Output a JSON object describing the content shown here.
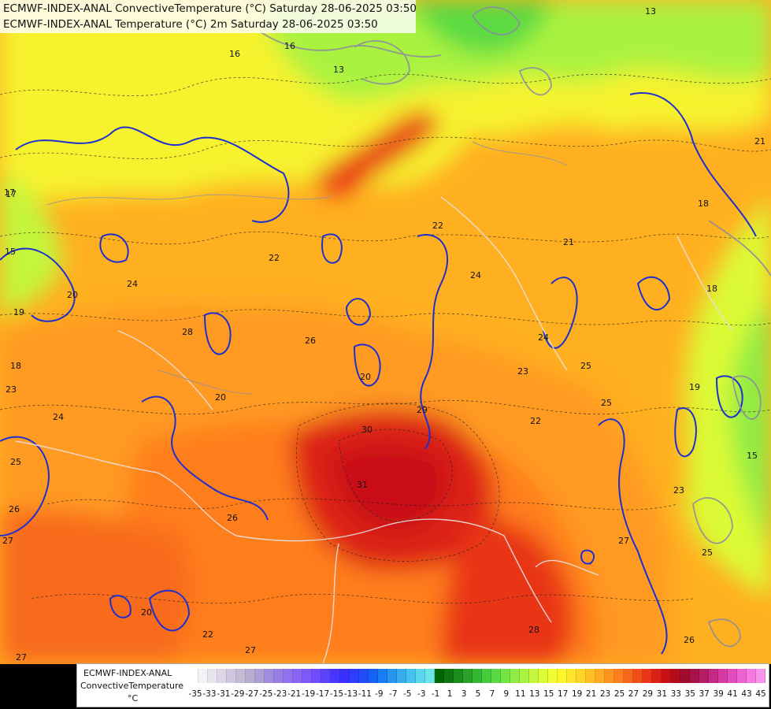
{
  "titles": {
    "line1": "ECMWF-INDEX-ANAL ConvectiveTemperature (°C) Saturday 28-06-2025 03:50",
    "line2": "ECMWF-INDEX-ANAL Temperature (°C) 2m Saturday 28-06-2025 03:50"
  },
  "legend": {
    "source": "ECMWF-INDEX-ANAL",
    "variable": "ConvectiveTemperature",
    "unit": "°C",
    "colors": [
      "#ffffff",
      "#f4f2f6",
      "#e8e4ee",
      "#dcd6e6",
      "#d0c8de",
      "#c4bcd4",
      "#b8aed0",
      "#ac9fd4",
      "#a08edd",
      "#9a7ee8",
      "#9270f0",
      "#8a64f6",
      "#7e58fb",
      "#6e4dff",
      "#5b42ff",
      "#4636ff",
      "#3a2fff",
      "#2e3dff",
      "#1f4dfa",
      "#1463f5",
      "#1a7cf2",
      "#2794f0",
      "#36abef",
      "#46c2ee",
      "#58d6ec",
      "#6ae6e8",
      "#006400",
      "#107710",
      "#1c8c1c",
      "#28a228",
      "#34b834",
      "#44cc3c",
      "#5ada42",
      "#74e444",
      "#8fec44",
      "#aaf240",
      "#c4f63c",
      "#dcfa36",
      "#f0fc30",
      "#fdf52c",
      "#ffe62a",
      "#ffd428",
      "#ffc024",
      "#ffaa22",
      "#ff9420",
      "#ff7e1e",
      "#fa661c",
      "#f24e1a",
      "#e83618",
      "#dc2016",
      "#c81014",
      "#b40c1c",
      "#a00c30",
      "#a8124a",
      "#b41c66",
      "#c42a84",
      "#d43aa2",
      "#e04cbc",
      "#ec62d2",
      "#f47ae2",
      "#f894ec"
    ],
    "ticks": [
      "-35",
      "-33",
      "-31",
      "-29",
      "-27",
      "-25",
      "-23",
      "-21",
      "-19",
      "-17",
      "-15",
      "-13",
      "-11",
      "-9",
      "-7",
      "-5",
      "-3",
      "-1",
      "1",
      "3",
      "5",
      "7",
      "9",
      "11",
      "13",
      "15",
      "17",
      "19",
      "21",
      "23",
      "25",
      "27",
      "29",
      "31",
      "33",
      "35",
      "37",
      "39",
      "41",
      "43",
      "45"
    ]
  },
  "map": {
    "contour_labels": [
      {
        "text": "13"
      },
      {
        "text": "16"
      },
      {
        "text": "13"
      },
      {
        "text": "16"
      },
      {
        "text": "17"
      },
      {
        "text": "15"
      },
      {
        "text": "20"
      },
      {
        "text": "22"
      },
      {
        "text": "24"
      },
      {
        "text": "22"
      },
      {
        "text": "19"
      },
      {
        "text": "18"
      },
      {
        "text": "23"
      },
      {
        "text": "28"
      },
      {
        "text": "26"
      },
      {
        "text": "20"
      },
      {
        "text": "24"
      },
      {
        "text": "20"
      },
      {
        "text": "25"
      },
      {
        "text": "26"
      },
      {
        "text": "27"
      },
      {
        "text": "30"
      },
      {
        "text": "29"
      },
      {
        "text": "31"
      },
      {
        "text": "24"
      },
      {
        "text": "21"
      },
      {
        "text": "24"
      },
      {
        "text": "23"
      },
      {
        "text": "25"
      },
      {
        "text": "22"
      },
      {
        "text": "25"
      },
      {
        "text": "18"
      },
      {
        "text": "19"
      },
      {
        "text": "15"
      },
      {
        "text": "23"
      },
      {
        "text": "27"
      },
      {
        "text": "25"
      },
      {
        "text": "28"
      },
      {
        "text": "20"
      },
      {
        "text": "22"
      },
      {
        "text": "27"
      },
      {
        "text": "27"
      },
      {
        "text": "26"
      },
      {
        "text": "17"
      },
      {
        "text": "18"
      },
      {
        "text": "21"
      },
      {
        "text": "26"
      }
    ]
  }
}
